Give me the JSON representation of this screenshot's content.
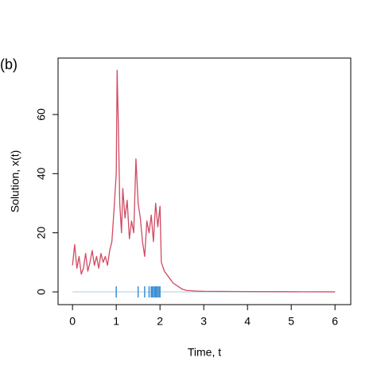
{
  "chart_data": {
    "type": "line",
    "panel_label": "(b)",
    "xlabel": "Time, t",
    "ylabel": "Solution, x(t)",
    "xlim": [
      -0.33,
      6.36
    ],
    "ylim": [
      -4.3,
      79.1
    ],
    "xticks": [
      0,
      1,
      2,
      3,
      4,
      5,
      6
    ],
    "yticks": [
      0,
      20,
      40,
      60
    ],
    "reference_line": 0,
    "reference_color": "#a9cde8",
    "rug_color": "#3a8fd6",
    "rug": [
      1.0,
      1.5,
      1.65,
      1.75,
      1.8,
      1.82,
      1.85,
      1.88,
      1.9,
      1.92,
      1.95,
      1.98,
      2.0
    ],
    "series": [
      {
        "color": "#d04a63",
        "x": [
          0,
          0.05,
          0.1,
          0.15,
          0.2,
          0.25,
          0.3,
          0.35,
          0.4,
          0.45,
          0.5,
          0.55,
          0.6,
          0.65,
          0.7,
          0.75,
          0.8,
          0.85,
          0.9,
          0.95,
          1.0,
          1.02,
          1.05,
          1.08,
          1.12,
          1.15,
          1.2,
          1.25,
          1.3,
          1.35,
          1.4,
          1.45,
          1.5,
          1.55,
          1.6,
          1.65,
          1.7,
          1.75,
          1.8,
          1.85,
          1.9,
          1.95,
          2.0,
          2.03,
          2.1,
          2.2,
          2.3,
          2.4,
          2.5,
          2.6,
          2.8,
          3.0,
          4.0,
          5.0,
          6.0
        ],
        "values": [
          9,
          16,
          8,
          12,
          6,
          8,
          13,
          7,
          10,
          14,
          9,
          12,
          8,
          13,
          10,
          12,
          9,
          14,
          17,
          28,
          40,
          75,
          55,
          30,
          20,
          35,
          25,
          31,
          18,
          24,
          20,
          45,
          30,
          25,
          17,
          12,
          24,
          20,
          26,
          17,
          30,
          22,
          29,
          10,
          7,
          5,
          3,
          2,
          1,
          0.5,
          0.3,
          0.2,
          0.1,
          0.05,
          0.02
        ]
      }
    ]
  }
}
